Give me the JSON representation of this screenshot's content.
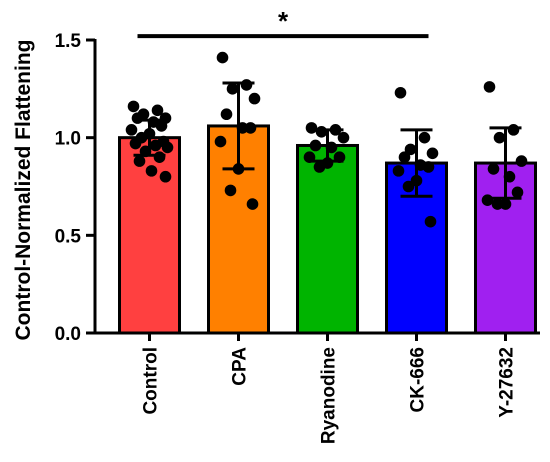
{
  "chart_data": {
    "type": "bar",
    "ylabel": "Control-Normalized Flattening",
    "xlabel": "",
    "ylim": [
      0,
      1.5
    ],
    "yticks": [
      0.0,
      0.5,
      1.0,
      1.5
    ],
    "ytick_labels": [
      "0.0",
      "0.5",
      "1.0",
      "1.5"
    ],
    "categories": [
      "Control",
      "CPA",
      "Ryanodine",
      "CK-666",
      "Y-27632"
    ],
    "colors": [
      "#ff4040",
      "#ff8000",
      "#00b400",
      "#0000ff",
      "#a020f0"
    ],
    "values": [
      1.0,
      1.06,
      0.96,
      0.87,
      0.87
    ],
    "error_sd": [
      0.09,
      0.22,
      0.08,
      0.17,
      0.18
    ],
    "points": [
      [
        1.16,
        1.14,
        1.12,
        1.1,
        1.1,
        1.08,
        1.06,
        1.04,
        1.02,
        1.0,
        0.98,
        0.97,
        0.96,
        0.95,
        0.93,
        0.9,
        0.88,
        0.83,
        0.8
      ],
      [
        1.41,
        1.27,
        1.25,
        1.2,
        1.12,
        1.05,
        1.05,
        0.98,
        0.84,
        0.73,
        0.66
      ],
      [
        1.05,
        1.04,
        1.03,
        1.0,
        0.96,
        0.95,
        0.9,
        0.9,
        0.87,
        0.85
      ],
      [
        1.23,
        1.0,
        0.94,
        0.92,
        0.9,
        0.86,
        0.85,
        0.83,
        0.78,
        0.75,
        0.57
      ],
      [
        1.26,
        1.04,
        1.0,
        0.88,
        0.84,
        0.8,
        0.72,
        0.68,
        0.66,
        0.66
      ]
    ],
    "significance": [
      {
        "from": "Control",
        "to": "CK-666",
        "y": 1.52,
        "label": "*"
      }
    ]
  }
}
